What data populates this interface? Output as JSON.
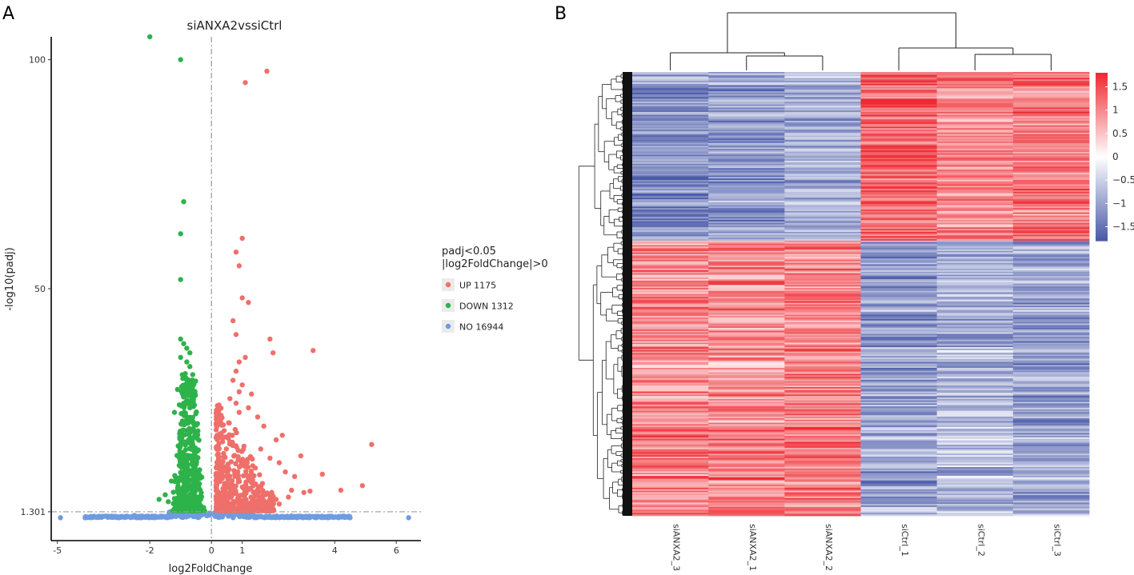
{
  "panels": {
    "a_label": "A",
    "b_label": "B"
  },
  "chart_data": [
    {
      "type": "scatter",
      "panel": "A",
      "title": "siANXA2vssiCtrl",
      "xlabel": "log2FoldChange",
      "ylabel": "-log10(padj)",
      "xlim": [
        -5.2,
        6.8
      ],
      "ylim": [
        -5,
        105
      ],
      "x_ticks": [
        -5,
        -2,
        0,
        1,
        4,
        6
      ],
      "x_tick_labels": [
        "-5",
        "-2",
        "0",
        "1",
        "4",
        "6"
      ],
      "y_ticks": [
        1.301,
        50,
        100
      ],
      "y_tick_labels": [
        "1.301",
        "50",
        "100"
      ],
      "threshold_lines": {
        "x": 0,
        "y": 1.301
      },
      "legend": {
        "title_line1": "padj<0.05",
        "title_line2": "|log2FoldChange|>0",
        "entries": [
          {
            "label": "UP 1175",
            "color": "#ef6f6a"
          },
          {
            "label": "DOWN 1312",
            "color": "#2eb24a"
          },
          {
            "label": "NO 16944",
            "color": "#6f9ce0"
          }
        ],
        "position": "right"
      },
      "series": [
        {
          "name": "UP",
          "color": "#ef6f6a",
          "points": [
            [
              1.1,
              95
            ],
            [
              1.8,
              97.5
            ],
            [
              0.8,
              58
            ],
            [
              1.0,
              61
            ],
            [
              0.9,
              55
            ],
            [
              1.0,
              48
            ],
            [
              1.2,
              47
            ],
            [
              0.7,
              43
            ],
            [
              0.8,
              40
            ],
            [
              1.9,
              39
            ],
            [
              2.0,
              36
            ],
            [
              3.3,
              36.5
            ],
            [
              1.1,
              35
            ],
            [
              0.9,
              34
            ],
            [
              0.8,
              32
            ],
            [
              0.7,
              30
            ],
            [
              1.0,
              29
            ],
            [
              0.9,
              27.5
            ],
            [
              1.3,
              27
            ],
            [
              0.6,
              26
            ],
            [
              0.8,
              25
            ],
            [
              1.2,
              24
            ],
            [
              0.9,
              23
            ],
            [
              1.5,
              22
            ],
            [
              1.7,
              20
            ],
            [
              2.3,
              18
            ],
            [
              2.1,
              17
            ],
            [
              5.2,
              16
            ],
            [
              1.6,
              15
            ],
            [
              1.9,
              13
            ],
            [
              2.9,
              13.5
            ],
            [
              2.2,
              12
            ],
            [
              2.4,
              10
            ],
            [
              2.7,
              9
            ],
            [
              3.6,
              9.5
            ],
            [
              4.9,
              7
            ],
            [
              4.2,
              6
            ],
            [
              3.0,
              5.5
            ],
            [
              3.2,
              5.8
            ],
            [
              2.6,
              6
            ],
            [
              2.5,
              4.5
            ],
            [
              2.1,
              4
            ],
            [
              1.9,
              5
            ],
            [
              2.2,
              3
            ],
            [
              1.5,
              3.5
            ]
          ],
          "dense_cluster": {
            "x": [
              0.15,
              1.45
            ],
            "y_max_near_x0": 25,
            "note": "dense region fanning out from x=0"
          }
        },
        {
          "name": "DOWN",
          "color": "#2eb24a",
          "points": [
            [
              -2.0,
              105
            ],
            [
              -1.0,
              100
            ],
            [
              -0.9,
              69
            ],
            [
              -1.0,
              62
            ],
            [
              -1.0,
              52
            ],
            [
              -1.0,
              39
            ],
            [
              -0.9,
              38
            ],
            [
              -0.8,
              37
            ],
            [
              -0.7,
              36
            ],
            [
              -1.0,
              35
            ],
            [
              -0.8,
              34
            ],
            [
              -0.7,
              33
            ],
            [
              -0.9,
              31
            ],
            [
              -0.8,
              30
            ],
            [
              -0.7,
              29
            ],
            [
              -1.1,
              28
            ],
            [
              -0.8,
              27
            ],
            [
              -0.6,
              26
            ],
            [
              -0.9,
              25
            ],
            [
              -0.7,
              24
            ],
            [
              -1.2,
              23
            ],
            [
              -0.8,
              22
            ],
            [
              -0.6,
              21
            ],
            [
              -1.3,
              8
            ],
            [
              -1.5,
              5
            ],
            [
              -1.7,
              4
            ],
            [
              -1.4,
              3.5
            ]
          ],
          "dense_cluster": {
            "x": [
              -1.5,
              -0.15
            ],
            "y_max": 30,
            "note": "dense column of points just left of x=0"
          }
        },
        {
          "name": "NO",
          "color": "#6f9ce0",
          "points": [
            [
              -4.9,
              0
            ],
            [
              6.4,
              0
            ],
            [
              -4.1,
              0
            ],
            [
              4.5,
              0
            ],
            [
              -3.5,
              0.3
            ],
            [
              3.8,
              0.2
            ],
            [
              -2.5,
              0.5
            ],
            [
              2.6,
              0.4
            ],
            [
              -1.2,
              0.8
            ],
            [
              1.1,
              0.9
            ],
            [
              -0.3,
              1.1
            ],
            [
              0.4,
              1.2
            ],
            [
              0.6,
              1.0
            ],
            [
              -0.6,
              0.9
            ],
            [
              -1.9,
              0.3
            ],
            [
              2.0,
              0.2
            ]
          ],
          "dense_band": {
            "x": [
              -4.1,
              4.5
            ],
            "y": [
              0,
              1.3
            ],
            "note": "continuous band of points along y≈0"
          }
        }
      ]
    },
    {
      "type": "heatmap",
      "panel": "B",
      "columns": [
        "siANXA2_3",
        "siANXA2_1",
        "siANXA2_2",
        "siCtrl_1",
        "siCtrl_2",
        "siCtrl_3"
      ],
      "color_scale": {
        "min": -1.8,
        "max": 1.8,
        "low_color": "#4b5ba8",
        "mid_color": "#ffffff",
        "high_color": "#ee2b33",
        "ticks": [
          1.5,
          1,
          0.5,
          0,
          -0.5,
          -1,
          -1.5
        ],
        "tick_labels": [
          "1.5",
          "1",
          "0.5",
          "0",
          "−0.5",
          "−1",
          "−1.5"
        ]
      },
      "row_count": 2487,
      "row_clusters": [
        {
          "name": "cluster_1",
          "fraction_of_rows": 0.38,
          "column_means": [
            -1.2,
            -1.1,
            -0.9,
            1.3,
            1.0,
            1.1
          ]
        },
        {
          "name": "cluster_2",
          "fraction_of_rows": 0.62,
          "column_means": [
            1.0,
            1.0,
            1.1,
            -1.0,
            -0.8,
            -1.0
          ]
        }
      ],
      "column_dendrogram": "((siANXA2_3,(siANXA2_1,siANXA2_2)),(siCtrl_1,(siCtrl_2,siCtrl_3)))",
      "row_dendrogram": "shown on left"
    }
  ]
}
